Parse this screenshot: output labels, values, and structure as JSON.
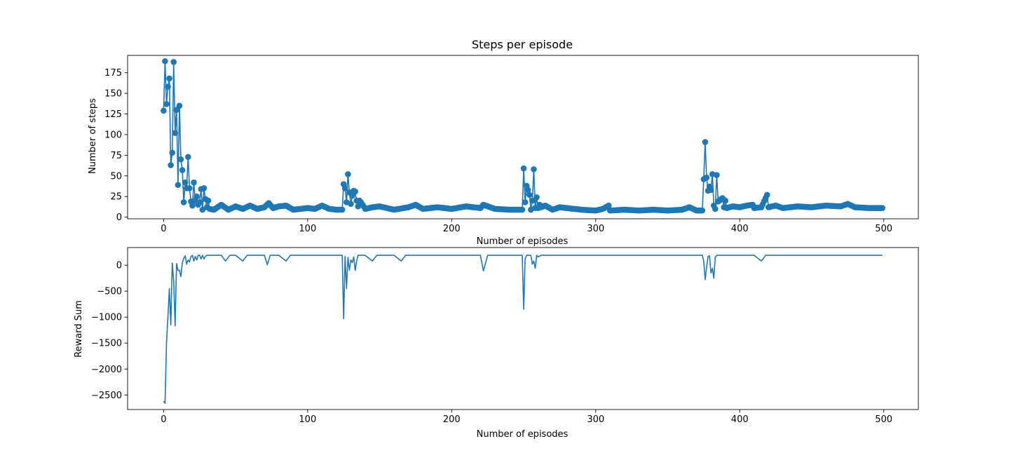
{
  "chart_data": [
    {
      "type": "line",
      "title": "Steps per episode",
      "xlabel": "Number of episodes",
      "ylabel": "Number of steps",
      "xlim": [
        -25,
        524
      ],
      "ylim": [
        -2,
        196
      ],
      "xticks": [
        0,
        100,
        200,
        300,
        400,
        500
      ],
      "yticks": [
        0,
        25,
        50,
        75,
        100,
        125,
        150,
        175
      ],
      "grid": false,
      "markers": true,
      "color": "#1f77b4",
      "anchors": [
        [
          0,
          129
        ],
        [
          1,
          189
        ],
        [
          2,
          137
        ],
        [
          3,
          158
        ],
        [
          4,
          168
        ],
        [
          5,
          63
        ],
        [
          6,
          78
        ],
        [
          7,
          188
        ],
        [
          8,
          102
        ],
        [
          9,
          130
        ],
        [
          10,
          39
        ],
        [
          11,
          135
        ],
        [
          12,
          70
        ],
        [
          13,
          57
        ],
        [
          14,
          18
        ],
        [
          15,
          42
        ],
        [
          16,
          35
        ],
        [
          17,
          73
        ],
        [
          18,
          35
        ],
        [
          19,
          19
        ],
        [
          20,
          14
        ],
        [
          21,
          42
        ],
        [
          22,
          20
        ],
        [
          23,
          25
        ],
        [
          24,
          15
        ],
        [
          25,
          18
        ],
        [
          26,
          34
        ],
        [
          27,
          9
        ],
        [
          28,
          35
        ],
        [
          29,
          22
        ],
        [
          30,
          12
        ],
        [
          31,
          20
        ],
        [
          32,
          10
        ],
        [
          35,
          9
        ],
        [
          40,
          15
        ],
        [
          45,
          9
        ],
        [
          50,
          13
        ],
        [
          55,
          10
        ],
        [
          60,
          14
        ],
        [
          65,
          10
        ],
        [
          70,
          12
        ],
        [
          73,
          17
        ],
        [
          76,
          11
        ],
        [
          80,
          13
        ],
        [
          85,
          14
        ],
        [
          90,
          9
        ],
        [
          100,
          11
        ],
        [
          105,
          10
        ],
        [
          110,
          14
        ],
        [
          115,
          10
        ],
        [
          120,
          9
        ],
        [
          124,
          9
        ],
        [
          125,
          40
        ],
        [
          126,
          35
        ],
        [
          127,
          18
        ],
        [
          128,
          52
        ],
        [
          129,
          30
        ],
        [
          130,
          16
        ],
        [
          131,
          26
        ],
        [
          132,
          32
        ],
        [
          133,
          31
        ],
        [
          134,
          20
        ],
        [
          135,
          13
        ],
        [
          136,
          20
        ],
        [
          137,
          18
        ],
        [
          140,
          10
        ],
        [
          145,
          12
        ],
        [
          150,
          13
        ],
        [
          160,
          9
        ],
        [
          170,
          12
        ],
        [
          175,
          15
        ],
        [
          180,
          10
        ],
        [
          190,
          12
        ],
        [
          200,
          10
        ],
        [
          210,
          13
        ],
        [
          220,
          11
        ],
        [
          222,
          15
        ],
        [
          230,
          10
        ],
        [
          240,
          9
        ],
        [
          245,
          9
        ],
        [
          249,
          9
        ],
        [
          250,
          59
        ],
        [
          251,
          18
        ],
        [
          252,
          38
        ],
        [
          253,
          33
        ],
        [
          254,
          27
        ],
        [
          255,
          9
        ],
        [
          256,
          20
        ],
        [
          257,
          58
        ],
        [
          258,
          11
        ],
        [
          259,
          24
        ],
        [
          260,
          11
        ],
        [
          261,
          15
        ],
        [
          262,
          12
        ],
        [
          265,
          14
        ],
        [
          270,
          9
        ],
        [
          275,
          12
        ],
        [
          280,
          11
        ],
        [
          290,
          9
        ],
        [
          300,
          8
        ],
        [
          305,
          10
        ],
        [
          309,
          14
        ],
        [
          310,
          8
        ],
        [
          320,
          9
        ],
        [
          330,
          8
        ],
        [
          340,
          9
        ],
        [
          350,
          8
        ],
        [
          360,
          9
        ],
        [
          365,
          12
        ],
        [
          370,
          8
        ],
        [
          374,
          8
        ],
        [
          375,
          46
        ],
        [
          376,
          91
        ],
        [
          377,
          48
        ],
        [
          378,
          32
        ],
        [
          379,
          37
        ],
        [
          380,
          33
        ],
        [
          381,
          52
        ],
        [
          382,
          14
        ],
        [
          383,
          10
        ],
        [
          384,
          51
        ],
        [
          385,
          19
        ],
        [
          386,
          20
        ],
        [
          387,
          22
        ],
        [
          388,
          23
        ],
        [
          389,
          12
        ],
        [
          390,
          20
        ],
        [
          391,
          11
        ],
        [
          395,
          13
        ],
        [
          400,
          12
        ],
        [
          405,
          14
        ],
        [
          409,
          15
        ],
        [
          410,
          11
        ],
        [
          415,
          12
        ],
        [
          419,
          27
        ],
        [
          420,
          12
        ],
        [
          425,
          14
        ],
        [
          430,
          11
        ],
        [
          440,
          13
        ],
        [
          450,
          12
        ],
        [
          460,
          14
        ],
        [
          470,
          13
        ],
        [
          475,
          16
        ],
        [
          480,
          12
        ],
        [
          490,
          11
        ],
        [
          499,
          11
        ]
      ]
    },
    {
      "type": "line",
      "title": "",
      "xlabel": "Number of episodes",
      "ylabel": "Reward Sum",
      "xlim": [
        -25,
        524
      ],
      "ylim": [
        -2780,
        340
      ],
      "xticks": [
        0,
        100,
        200,
        300,
        400,
        500
      ],
      "yticks": [
        0,
        -500,
        -1000,
        -1500,
        -2000,
        -2500
      ],
      "ytick_labels": [
        "0",
        "−500",
        "−1000",
        "−1500",
        "−2000",
        "−2500"
      ],
      "grid": false,
      "markers": false,
      "color": "#1f77b4",
      "anchors": [
        [
          0,
          -2620
        ],
        [
          1,
          -2660
        ],
        [
          2,
          -1500
        ],
        [
          3,
          -1000
        ],
        [
          4,
          -450
        ],
        [
          5,
          -1150
        ],
        [
          6,
          40
        ],
        [
          7,
          -300
        ],
        [
          8,
          -1170
        ],
        [
          9,
          30
        ],
        [
          10,
          -100
        ],
        [
          11,
          -100
        ],
        [
          12,
          -220
        ],
        [
          13,
          50
        ],
        [
          14,
          130
        ],
        [
          15,
          180
        ],
        [
          16,
          20
        ],
        [
          17,
          100
        ],
        [
          18,
          60
        ],
        [
          19,
          170
        ],
        [
          20,
          190
        ],
        [
          21,
          80
        ],
        [
          22,
          170
        ],
        [
          23,
          100
        ],
        [
          24,
          190
        ],
        [
          25,
          190
        ],
        [
          26,
          120
        ],
        [
          27,
          190
        ],
        [
          28,
          120
        ],
        [
          29,
          170
        ],
        [
          30,
          190
        ],
        [
          35,
          190
        ],
        [
          40,
          190
        ],
        [
          43,
          80
        ],
        [
          46,
          190
        ],
        [
          50,
          190
        ],
        [
          55,
          80
        ],
        [
          58,
          190
        ],
        [
          65,
          190
        ],
        [
          70,
          190
        ],
        [
          72,
          10
        ],
        [
          74,
          190
        ],
        [
          80,
          190
        ],
        [
          85,
          80
        ],
        [
          88,
          190
        ],
        [
          100,
          190
        ],
        [
          110,
          190
        ],
        [
          115,
          190
        ],
        [
          120,
          190
        ],
        [
          124,
          190
        ],
        [
          125,
          -1030
        ],
        [
          126,
          170
        ],
        [
          127,
          -450
        ],
        [
          128,
          150
        ],
        [
          129,
          -100
        ],
        [
          130,
          100
        ],
        [
          131,
          50
        ],
        [
          132,
          160
        ],
        [
          133,
          -100
        ],
        [
          134,
          80
        ],
        [
          135,
          190
        ],
        [
          140,
          190
        ],
        [
          145,
          80
        ],
        [
          148,
          190
        ],
        [
          160,
          190
        ],
        [
          165,
          80
        ],
        [
          168,
          190
        ],
        [
          180,
          190
        ],
        [
          190,
          190
        ],
        [
          200,
          190
        ],
        [
          210,
          190
        ],
        [
          220,
          190
        ],
        [
          222,
          -110
        ],
        [
          225,
          190
        ],
        [
          230,
          190
        ],
        [
          240,
          190
        ],
        [
          245,
          190
        ],
        [
          249,
          190
        ],
        [
          250,
          -850
        ],
        [
          251,
          120
        ],
        [
          252,
          190
        ],
        [
          255,
          190
        ],
        [
          256,
          20
        ],
        [
          257,
          80
        ],
        [
          258,
          -60
        ],
        [
          259,
          190
        ],
        [
          260,
          160
        ],
        [
          262,
          190
        ],
        [
          270,
          190
        ],
        [
          280,
          190
        ],
        [
          300,
          190
        ],
        [
          310,
          190
        ],
        [
          320,
          190
        ],
        [
          330,
          190
        ],
        [
          340,
          190
        ],
        [
          350,
          190
        ],
        [
          360,
          190
        ],
        [
          370,
          190
        ],
        [
          374,
          190
        ],
        [
          375,
          80
        ],
        [
          376,
          -280
        ],
        [
          377,
          -40
        ],
        [
          378,
          170
        ],
        [
          379,
          180
        ],
        [
          380,
          -150
        ],
        [
          381,
          -60
        ],
        [
          382,
          -250
        ],
        [
          383,
          160
        ],
        [
          384,
          190
        ],
        [
          385,
          190
        ],
        [
          390,
          190
        ],
        [
          400,
          190
        ],
        [
          410,
          190
        ],
        [
          415,
          80
        ],
        [
          418,
          190
        ],
        [
          430,
          190
        ],
        [
          440,
          190
        ],
        [
          450,
          190
        ],
        [
          460,
          190
        ],
        [
          470,
          190
        ],
        [
          480,
          190
        ],
        [
          490,
          190
        ],
        [
          499,
          190
        ]
      ]
    }
  ]
}
